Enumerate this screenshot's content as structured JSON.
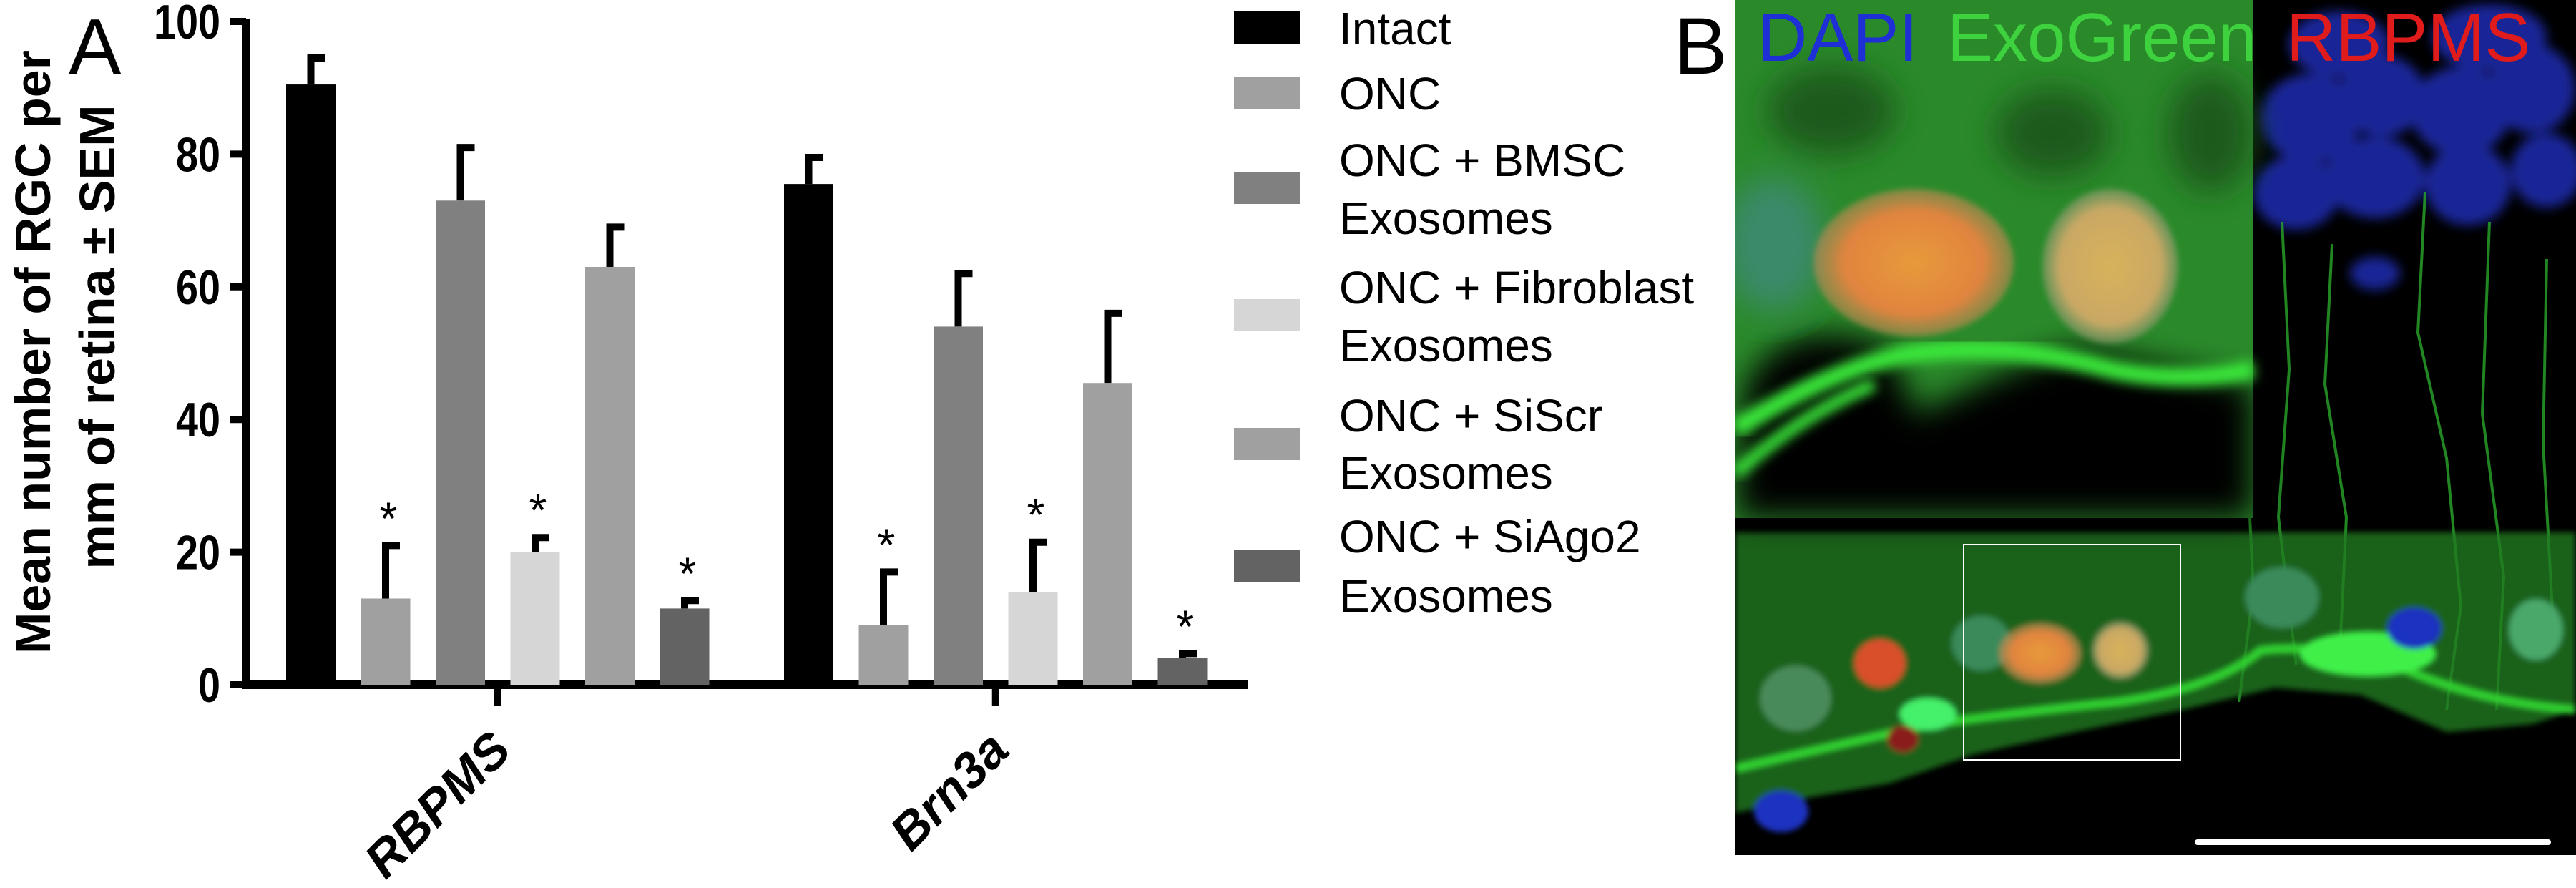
{
  "panel_a_label": "A",
  "panel_b_label": "B",
  "chart_data": {
    "type": "bar",
    "title": "",
    "ylabel_lines": [
      "Mean number of RGC per",
      "mm of retina ± SEM"
    ],
    "xlabel": "",
    "ylim": [
      0,
      100
    ],
    "yticks": [
      "0",
      "20",
      "40",
      "60",
      "80",
      "100"
    ],
    "categories": [
      "RBPMS",
      "Brn3a"
    ],
    "grid": false,
    "legend_position": "right",
    "series": [
      {
        "name": "Intact",
        "legend_lines": [
          "Intact"
        ],
        "color": "#000000",
        "values": [
          90.5,
          75.5
        ],
        "sem": [
          4.0,
          4.0
        ],
        "significant": [
          false,
          false
        ]
      },
      {
        "name": "ONC",
        "legend_lines": [
          "ONC"
        ],
        "color": "#a0a0a0",
        "values": [
          13.0,
          9.0
        ],
        "sem": [
          8.0,
          8.0
        ],
        "significant": [
          true,
          true
        ]
      },
      {
        "name": "ONC + BMSC Exosomes",
        "legend_lines": [
          "ONC + BMSC",
          "Exosomes"
        ],
        "color": "#808080",
        "values": [
          73.0,
          54.0
        ],
        "sem": [
          8.0,
          8.0
        ],
        "significant": [
          false,
          false
        ]
      },
      {
        "name": "ONC + Fibroblast Exosomes",
        "legend_lines": [
          "ONC + Fibroblast",
          "Exosomes"
        ],
        "color": "#d6d6d6",
        "values": [
          20.0,
          14.0
        ],
        "sem": [
          2.2,
          7.5
        ],
        "significant": [
          true,
          true
        ]
      },
      {
        "name": "ONC + SiScr Exosomes",
        "legend_lines": [
          "ONC + SiScr",
          "Exosomes"
        ],
        "color": "#a0a0a0",
        "values": [
          63.0,
          45.5
        ],
        "sem": [
          6.0,
          10.5
        ],
        "significant": [
          false,
          false
        ]
      },
      {
        "name": "ONC + SiAgo2 Exosomes",
        "legend_lines": [
          "ONC + SiAgo2",
          "Exosomes"
        ],
        "color": "#636363",
        "values": [
          11.5,
          4.0
        ],
        "sem": [
          1.2,
          0.7
        ],
        "significant": [
          true,
          true
        ]
      }
    ],
    "significance_marker": "*"
  },
  "micrograph": {
    "stain_labels": [
      {
        "text": "DAPI",
        "color": "#1f2fd6"
      },
      {
        "text": "ExoGreen",
        "color": "#3fd23f"
      },
      {
        "text": "RBPMS",
        "color": "#e01b1b"
      }
    ]
  }
}
